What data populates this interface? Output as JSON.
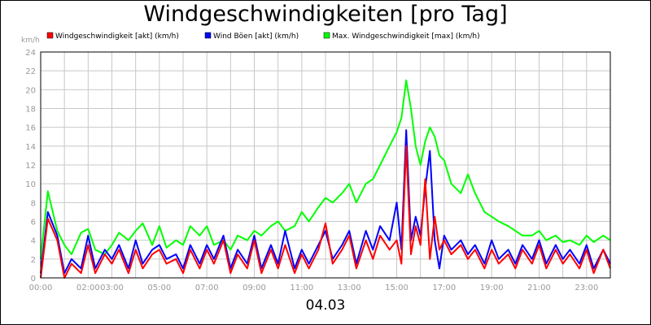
{
  "title": "Windgeschwindigkeiten [pro Tag]",
  "date_label": "04.03",
  "chart_data": {
    "type": "line",
    "title": "Windgeschwindigkeiten [pro Tag]",
    "ylabel": "km/h",
    "xlabel": "",
    "ylim": [
      0,
      24
    ],
    "xlim": [
      0,
      24
    ],
    "yticks": [
      0,
      2,
      4,
      6,
      8,
      10,
      12,
      14,
      16,
      18,
      20,
      22,
      24
    ],
    "xtick_labels": [
      {
        "t": 0,
        "label": "00:00"
      },
      {
        "t": 2,
        "label": "02:00"
      },
      {
        "t": 3,
        "label": "03:00"
      },
      {
        "t": 5,
        "label": "05:00"
      },
      {
        "t": 7,
        "label": "07:00"
      },
      {
        "t": 9,
        "label": "09:00"
      },
      {
        "t": 11,
        "label": "11:00"
      },
      {
        "t": 13,
        "label": "13:00"
      },
      {
        "t": 15,
        "label": "15:00"
      },
      {
        "t": 17,
        "label": "17:00"
      },
      {
        "t": 19,
        "label": "19:00"
      },
      {
        "t": 21,
        "label": "21:00"
      },
      {
        "t": 23,
        "label": "23:00"
      }
    ],
    "grid": true,
    "legend_position": "top",
    "series": [
      {
        "name": "Windgeschwindigkeit [akt] (km/h)",
        "color": "#ff0000",
        "x": [
          0,
          0.3,
          0.7,
          1,
          1.3,
          1.7,
          2,
          2.3,
          2.7,
          3,
          3.3,
          3.7,
          4,
          4.3,
          4.7,
          5,
          5.3,
          5.7,
          6,
          6.3,
          6.7,
          7,
          7.3,
          7.7,
          8,
          8.3,
          8.7,
          9,
          9.3,
          9.7,
          10,
          10.3,
          10.7,
          11,
          11.3,
          11.7,
          12,
          12.3,
          12.7,
          13,
          13.3,
          13.7,
          14,
          14.3,
          14.7,
          15,
          15.2,
          15.4,
          15.6,
          15.8,
          16,
          16.2,
          16.4,
          16.6,
          16.8,
          17,
          17.3,
          17.7,
          18,
          18.3,
          18.7,
          19,
          19.3,
          19.7,
          20,
          20.3,
          20.7,
          21,
          21.3,
          21.7,
          22,
          22.3,
          22.7,
          23,
          23.3,
          23.7,
          24
        ],
        "y": [
          0,
          6.3,
          4,
          0,
          1.5,
          0.5,
          3.5,
          0.5,
          2.5,
          1.5,
          3,
          0.5,
          3,
          1,
          2.5,
          3,
          1.5,
          2,
          0.5,
          3,
          1,
          3,
          1.5,
          4,
          0.5,
          2.5,
          1,
          4,
          0.5,
          3,
          1,
          3.5,
          0.5,
          2.5,
          1,
          3,
          5.8,
          1.5,
          3,
          4.5,
          1,
          4,
          2,
          4.5,
          3,
          4,
          1.5,
          14,
          2.5,
          5.5,
          3.5,
          10.5,
          2,
          6.5,
          3,
          4,
          2.5,
          3.5,
          2,
          3,
          1,
          3,
          1.5,
          2.5,
          1,
          3,
          1.5,
          3.5,
          1,
          3,
          1.5,
          2.5,
          1,
          3,
          0.5,
          3,
          1
        ]
      },
      {
        "name": "Wind Böen [akt] (km/h)",
        "color": "#0000ff",
        "x": [
          0,
          0.3,
          0.7,
          1,
          1.3,
          1.7,
          2,
          2.3,
          2.7,
          3,
          3.3,
          3.7,
          4,
          4.3,
          4.7,
          5,
          5.3,
          5.7,
          6,
          6.3,
          6.7,
          7,
          7.3,
          7.7,
          8,
          8.3,
          8.7,
          9,
          9.3,
          9.7,
          10,
          10.3,
          10.7,
          11,
          11.3,
          11.7,
          12,
          12.3,
          12.7,
          13,
          13.3,
          13.7,
          14,
          14.3,
          14.7,
          15,
          15.2,
          15.4,
          15.6,
          15.8,
          16,
          16.2,
          16.4,
          16.6,
          16.8,
          17,
          17.3,
          17.7,
          18,
          18.3,
          18.7,
          19,
          19.3,
          19.7,
          20,
          20.3,
          20.7,
          21,
          21.3,
          21.7,
          22,
          22.3,
          22.7,
          23,
          23.3,
          23.7,
          24
        ],
        "y": [
          0.5,
          7,
          4.5,
          0.5,
          2,
          1,
          4.5,
          1,
          3,
          2,
          3.5,
          1,
          4,
          1.5,
          3,
          3.5,
          2,
          2.5,
          1,
          3.5,
          1.5,
          3.5,
          2,
          4.5,
          1,
          3,
          1.5,
          4.5,
          1,
          3.5,
          1.5,
          5,
          1,
          3,
          1.5,
          3.5,
          5,
          2,
          3.5,
          5,
          1.5,
          5,
          3,
          5.5,
          4,
          8,
          3,
          15.7,
          4,
          6.5,
          4.5,
          9.5,
          13.5,
          4,
          1,
          4.5,
          3,
          4,
          2.5,
          3.5,
          1.5,
          4,
          2,
          3,
          1.5,
          3.5,
          2,
          4,
          1.5,
          3.5,
          2,
          3,
          1.5,
          3.5,
          1,
          3,
          1.5
        ]
      },
      {
        "name": "Max. Windgeschwindigkeit [max] (km/h)",
        "color": "#00ff00",
        "x": [
          0,
          0.3,
          0.7,
          1,
          1.3,
          1.7,
          2,
          2.3,
          2.7,
          3,
          3.3,
          3.7,
          4,
          4.3,
          4.7,
          5,
          5.3,
          5.7,
          6,
          6.3,
          6.7,
          7,
          7.3,
          7.7,
          8,
          8.3,
          8.7,
          9,
          9.3,
          9.7,
          10,
          10.3,
          10.7,
          11,
          11.3,
          11.7,
          12,
          12.3,
          12.7,
          13,
          13.3,
          13.7,
          14,
          14.3,
          14.7,
          15,
          15.2,
          15.4,
          15.6,
          15.8,
          16,
          16.2,
          16.4,
          16.6,
          16.8,
          17,
          17.3,
          17.7,
          18,
          18.3,
          18.7,
          19,
          19.3,
          19.7,
          20,
          20.3,
          20.7,
          21,
          21.3,
          21.7,
          22,
          22.3,
          22.7,
          23,
          23.3,
          23.7,
          24
        ],
        "y": [
          2,
          9.2,
          5,
          3.5,
          2.5,
          4.8,
          5.2,
          3,
          2.5,
          3.5,
          4.8,
          4,
          5,
          5.8,
          3.5,
          5.5,
          3.2,
          4,
          3.5,
          5.5,
          4.5,
          5.5,
          3.5,
          4,
          3,
          4.5,
          4,
          5,
          4.5,
          5.5,
          6,
          5,
          5.5,
          7,
          6,
          7.5,
          8.5,
          8,
          9,
          10,
          8,
          10,
          10.5,
          12,
          14,
          15.5,
          17,
          21,
          18,
          14,
          12,
          14.5,
          16,
          15,
          13,
          12.5,
          10,
          9,
          11,
          9,
          7,
          6.5,
          6,
          5.5,
          5,
          4.5,
          4.5,
          5,
          4,
          4.5,
          3.8,
          4,
          3.5,
          4.5,
          3.8,
          4.5,
          4
        ]
      }
    ]
  }
}
